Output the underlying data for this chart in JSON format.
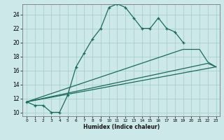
{
  "xlabel": "Humidex (Indice chaleur)",
  "bg_color": "#cce8e8",
  "grid_color": "#aad0d0",
  "line_color": "#1a6b5a",
  "xlim": [
    -0.5,
    23.5
  ],
  "ylim": [
    9.5,
    25.5
  ],
  "yticks": [
    10,
    12,
    14,
    16,
    18,
    20,
    22,
    24
  ],
  "xticks": [
    0,
    1,
    2,
    3,
    4,
    5,
    6,
    7,
    8,
    9,
    10,
    11,
    12,
    13,
    14,
    15,
    16,
    17,
    18,
    19,
    20,
    21,
    22,
    23
  ],
  "series1_x": [
    0,
    1,
    2,
    3,
    4,
    5,
    6,
    7,
    8,
    9,
    10,
    11,
    12,
    13,
    14,
    15,
    16,
    17,
    18,
    19
  ],
  "series1_y": [
    11.5,
    11.0,
    11.0,
    10.0,
    10.0,
    12.5,
    16.5,
    18.5,
    20.5,
    22.0,
    25.0,
    25.5,
    25.0,
    23.5,
    22.0,
    22.0,
    23.5,
    22.0,
    21.5,
    20.0
  ],
  "series2_x": [
    0,
    22,
    23
  ],
  "series2_y": [
    11.5,
    17.0,
    16.5
  ],
  "series3_x": [
    0,
    19,
    21,
    22,
    23
  ],
  "series3_y": [
    11.5,
    19.0,
    19.0,
    17.2,
    16.5
  ],
  "series4_x": [
    0,
    23
  ],
  "series4_y": [
    11.5,
    16.5
  ]
}
